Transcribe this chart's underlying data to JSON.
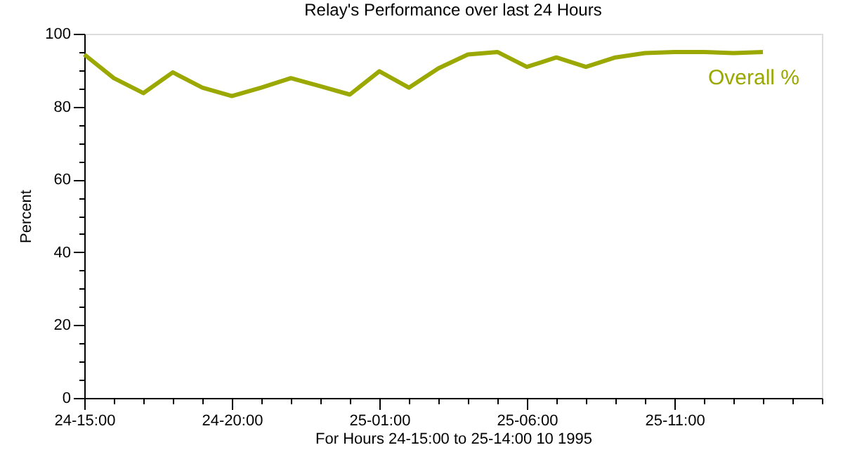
{
  "chart_data": {
    "type": "line",
    "title": "Relay's Performance over last 24 Hours",
    "xlabel": "For Hours 24-15:00 to 25-14:00   10  1995",
    "ylabel": "Percent",
    "x": [
      "1995-10-24T15:00",
      "1995-10-24T16:00",
      "1995-10-24T17:00",
      "1995-10-24T18:00",
      "1995-10-24T19:00",
      "1995-10-24T20:00",
      "1995-10-24T21:00",
      "1995-10-24T22:00",
      "1995-10-24T23:00",
      "1995-10-25T00:00",
      "1995-10-25T01:00",
      "1995-10-25T02:00",
      "1995-10-25T03:00",
      "1995-10-25T04:00",
      "1995-10-25T05:00",
      "1995-10-25T06:00",
      "1995-10-25T07:00",
      "1995-10-25T08:00",
      "1995-10-25T09:00",
      "1995-10-25T10:00",
      "1995-10-25T11:00",
      "1995-10-25T12:00",
      "1995-10-25T13:00",
      "1995-10-25T14:00"
    ],
    "series": [
      {
        "name": "Overall %",
        "color": "#9aa800",
        "values": [
          94.3,
          87.8,
          83.7,
          89.4,
          85.2,
          82.9,
          85.2,
          87.8,
          85.6,
          83.3,
          89.7,
          85.2,
          90.5,
          94.3,
          95,
          90.9,
          93.5,
          90.9,
          93.5,
          94.7,
          95,
          95,
          94.7,
          95
        ]
      }
    ],
    "xlim": [
      "1995-10-24T15:00",
      "1995-10-25T16:00"
    ],
    "xticks": [
      {
        "value": "1995-10-24T15:00",
        "label": "24-15:00"
      },
      {
        "value": "1995-10-24T16:00",
        "label": null
      },
      {
        "value": "1995-10-24T17:00",
        "label": null
      },
      {
        "value": "1995-10-24T18:00",
        "label": null
      },
      {
        "value": "1995-10-24T19:00",
        "label": null
      },
      {
        "value": "1995-10-24T20:00",
        "label": "24-20:00"
      },
      {
        "value": "1995-10-24T21:00",
        "label": null
      },
      {
        "value": "1995-10-24T22:00",
        "label": null
      },
      {
        "value": "1995-10-24T23:00",
        "label": null
      },
      {
        "value": "1995-10-25T00:00",
        "label": null
      },
      {
        "value": "1995-10-25T01:00",
        "label": "25-01:00"
      },
      {
        "value": "1995-10-25T02:00",
        "label": null
      },
      {
        "value": "1995-10-25T03:00",
        "label": null
      },
      {
        "value": "1995-10-25T04:00",
        "label": null
      },
      {
        "value": "1995-10-25T05:00",
        "label": null
      },
      {
        "value": "1995-10-25T06:00",
        "label": "25-06:00"
      },
      {
        "value": "1995-10-25T07:00",
        "label": null
      },
      {
        "value": "1995-10-25T08:00",
        "label": null
      },
      {
        "value": "1995-10-25T09:00",
        "label": null
      },
      {
        "value": "1995-10-25T10:00",
        "label": null
      },
      {
        "value": "1995-10-25T11:00",
        "label": "25-11:00"
      },
      {
        "value": "1995-10-25T12:00",
        "label": null
      },
      {
        "value": "1995-10-25T13:00",
        "label": null
      },
      {
        "value": "1995-10-25T14:00",
        "label": null
      },
      {
        "value": "1995-10-25T15:00",
        "label": null
      },
      {
        "value": "1995-10-25T16:00",
        "label": null
      }
    ],
    "ylim": [
      0,
      100
    ],
    "yticks": [
      0,
      {
        "value": 5,
        "label": null
      },
      {
        "value": 10,
        "label": null
      },
      {
        "value": 15,
        "label": null
      },
      20,
      {
        "value": 25,
        "label": null
      },
      {
        "value": 30,
        "label": null
      },
      {
        "value": 35,
        "label": null
      },
      40,
      {
        "value": 45,
        "label": null
      },
      {
        "value": 50,
        "label": null
      },
      {
        "value": 55,
        "label": null
      },
      60,
      {
        "value": 65,
        "label": null
      },
      {
        "value": 70,
        "label": null
      },
      {
        "value": 75,
        "label": null
      },
      80,
      {
        "value": 85,
        "label": null
      },
      {
        "value": 90,
        "label": null
      },
      {
        "value": 95,
        "label": null
      },
      100
    ],
    "grid": false,
    "marker": "none",
    "line_style": "solid"
  }
}
